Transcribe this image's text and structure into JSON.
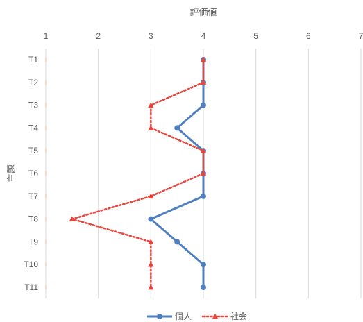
{
  "chart_data": {
    "type": "line",
    "orientation": "horizontal-values",
    "title": "評価値",
    "xlabel": "評価値",
    "ylabel": "主題",
    "xlim": [
      1,
      7
    ],
    "x_ticks": [
      "1",
      "2",
      "3",
      "4",
      "5",
      "6",
      "7"
    ],
    "categories": [
      "T1",
      "T2",
      "T3",
      "T4",
      "T5",
      "T6",
      "T7",
      "T8",
      "T9",
      "T10",
      "T11"
    ],
    "grid": true,
    "legend_position": "bottom",
    "series": [
      {
        "name": "個人",
        "color": "#4f7fbf",
        "style": "solid",
        "marker": "circle",
        "values": [
          4,
          4,
          4,
          3.5,
          4,
          4,
          4,
          3,
          3.5,
          4,
          4
        ]
      },
      {
        "name": "社会",
        "color": "#e8453c",
        "style": "dotted",
        "marker": "triangle",
        "values": [
          4,
          4,
          3,
          3,
          4,
          4,
          3,
          1.5,
          3,
          3,
          3
        ]
      }
    ]
  }
}
